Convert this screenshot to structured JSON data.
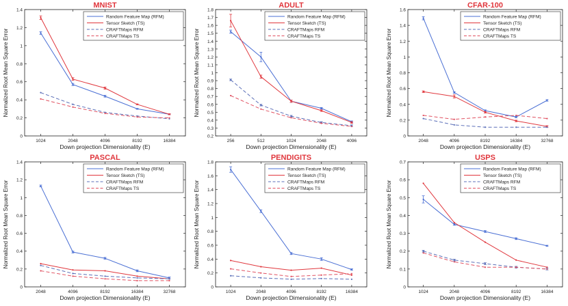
{
  "figure": {
    "background": "#ffffff"
  },
  "colors": {
    "rfm": "#4a6fd4",
    "ts": "#e0363c",
    "craft_rfm": "#5b6fb8",
    "craft_ts": "#e05060",
    "title": "#e0363c",
    "axis": "#222222"
  },
  "legend_labels": [
    "Random Feature Map (RFM)",
    "Tensor Sketch (TS)",
    "CRAFTMaps RFM",
    "CRAFTMaps TS"
  ],
  "chart_data": [
    {
      "type": "line",
      "title": "MNIST",
      "xlabel": "Down projection Dimensionality (E)",
      "ylabel": "Normalized Root Mean Square Error",
      "categories": [
        "1024",
        "2048",
        "4096",
        "8192",
        "16384"
      ],
      "ylim": [
        0,
        1.4
      ],
      "yticks": [
        "0",
        "0.2",
        "0.4",
        "0.6",
        "0.8",
        "1",
        "1.2",
        "1.4"
      ],
      "ytick_values": [
        0,
        0.2,
        0.4,
        0.6,
        0.8,
        1.0,
        1.2,
        1.4
      ],
      "series": [
        {
          "name": "Random Feature Map (RFM)",
          "values": [
            1.14,
            0.57,
            0.44,
            0.3,
            0.24
          ],
          "errors": [
            0.015,
            0.012,
            0.01,
            0.005,
            0.005
          ]
        },
        {
          "name": "Tensor Sketch (TS)",
          "values": [
            1.31,
            0.63,
            0.53,
            0.35,
            0.24
          ],
          "errors": [
            0.02,
            0.015,
            0.012,
            0.005,
            0.005
          ]
        },
        {
          "name": "CRAFTMaps RFM",
          "values": [
            0.48,
            0.35,
            0.26,
            0.22,
            0.19
          ]
        },
        {
          "name": "CRAFTMaps TS",
          "values": [
            0.41,
            0.32,
            0.25,
            0.21,
            0.2
          ]
        }
      ]
    },
    {
      "type": "line",
      "title": "ADULT",
      "xlabel": "Down projection Dimensionality (E)",
      "ylabel": "Normalized Root Mean Square Error",
      "categories": [
        "256",
        "512",
        "1024",
        "2048",
        "4096"
      ],
      "ylim": [
        0.2,
        1.8
      ],
      "yticks": [
        "0.2",
        "0.3",
        "0.4",
        "0.5",
        "0.6",
        "0.7",
        "0.8",
        "0.9",
        "1",
        "1.1",
        "1.2",
        "1.3",
        "1.4",
        "1.5",
        "1.6",
        "1.7",
        "1.8"
      ],
      "ytick_values": [
        0.2,
        0.3,
        0.4,
        0.5,
        0.6,
        0.7,
        0.8,
        0.9,
        1.0,
        1.1,
        1.2,
        1.3,
        1.4,
        1.5,
        1.6,
        1.7,
        1.8
      ],
      "series": [
        {
          "name": "Random Feature Map (RFM)",
          "values": [
            1.52,
            1.2,
            0.64,
            0.55,
            0.38
          ],
          "errors": [
            0.02,
            0.06,
            0.015,
            0.01,
            0.01
          ]
        },
        {
          "name": "Tensor Sketch (TS)",
          "values": [
            1.66,
            0.95,
            0.64,
            0.52,
            0.37
          ],
          "errors": [
            0.08,
            0.02,
            0.015,
            0.01,
            0.01
          ]
        },
        {
          "name": "CRAFTMaps RFM",
          "values": [
            0.91,
            0.59,
            0.45,
            0.37,
            0.33
          ],
          "errors": [
            0.01,
            0.01,
            0.01,
            0.01,
            0.01
          ]
        },
        {
          "name": "CRAFTMaps TS",
          "values": [
            0.71,
            0.54,
            0.43,
            0.36,
            0.32
          ]
        }
      ]
    },
    {
      "type": "line",
      "title": "CFAR-100",
      "xlabel": "Down projection Dimensionality (E)",
      "ylabel": "Normalized Root Mean Square Error",
      "categories": [
        "2048",
        "4096",
        "8192",
        "16384",
        "32768"
      ],
      "ylim": [
        0,
        1.6
      ],
      "yticks": [
        "0",
        "0.2",
        "0.4",
        "0.6",
        "0.8",
        "1",
        "1.2",
        "1.4",
        "1.6"
      ],
      "ytick_values": [
        0,
        0.2,
        0.4,
        0.6,
        0.8,
        1.0,
        1.2,
        1.4,
        1.6
      ],
      "series": [
        {
          "name": "Random Feature Map (RFM)",
          "values": [
            1.49,
            0.55,
            0.32,
            0.24,
            0.45
          ],
          "errors": [
            0.02,
            0.01,
            0.01,
            0.01,
            0.01
          ]
        },
        {
          "name": "Tensor Sketch (TS)",
          "values": [
            0.56,
            0.5,
            0.3,
            0.19,
            0.12
          ],
          "errors": [
            0.01,
            0.02,
            0.01,
            0.01,
            0.01
          ]
        },
        {
          "name": "CRAFTMaps RFM",
          "values": [
            0.22,
            0.14,
            0.11,
            0.11,
            0.11
          ]
        },
        {
          "name": "CRAFTMaps TS",
          "values": [
            0.26,
            0.21,
            0.24,
            0.26,
            0.22
          ]
        }
      ]
    },
    {
      "type": "line",
      "title": "PASCAL",
      "xlabel": "Down projection Dimensionality (E)",
      "ylabel": "Normalized Root Mean Square Error",
      "categories": [
        "2048",
        "4096",
        "8192",
        "16384",
        "32768"
      ],
      "ylim": [
        0,
        1.4
      ],
      "yticks": [
        "0",
        "0.2",
        "0.4",
        "0.6",
        "0.8",
        "1",
        "1.2",
        "1.4"
      ],
      "ytick_values": [
        0,
        0.2,
        0.4,
        0.6,
        0.8,
        1.0,
        1.2,
        1.4
      ],
      "series": [
        {
          "name": "Random Feature Map (RFM)",
          "values": [
            1.13,
            0.39,
            0.32,
            0.18,
            0.1
          ],
          "errors": [
            0.01,
            0.01,
            0.01,
            0.01,
            0.01
          ]
        },
        {
          "name": "Tensor Sketch (TS)",
          "values": [
            0.26,
            0.19,
            0.18,
            0.12,
            0.09
          ]
        },
        {
          "name": "CRAFTMaps RFM",
          "values": [
            0.24,
            0.15,
            0.12,
            0.1,
            0.09
          ]
        },
        {
          "name": "CRAFTMaps TS",
          "values": [
            0.18,
            0.12,
            0.09,
            0.07,
            0.07
          ]
        }
      ]
    },
    {
      "type": "line",
      "title": "PENDIGITS",
      "xlabel": "Down projection Dimensionality (E)",
      "ylabel": "Normalized Root Mean Square Error",
      "categories": [
        "1024",
        "2048",
        "4096",
        "8192",
        "16384"
      ],
      "ylim": [
        0,
        1.8
      ],
      "yticks": [
        "0",
        "0.2",
        "0.4",
        "0.6",
        "0.8",
        "1",
        "1.2",
        "1.4",
        "1.6",
        "1.8"
      ],
      "ytick_values": [
        0,
        0.2,
        0.4,
        0.6,
        0.8,
        1.0,
        1.2,
        1.4,
        1.6,
        1.8
      ],
      "series": [
        {
          "name": "Random Feature Map (RFM)",
          "values": [
            1.69,
            1.09,
            0.48,
            0.4,
            0.25
          ],
          "errors": [
            0.04,
            0.02,
            0.015,
            0.02,
            0.01
          ]
        },
        {
          "name": "Tensor Sketch (TS)",
          "values": [
            0.38,
            0.29,
            0.24,
            0.27,
            0.17
          ]
        },
        {
          "name": "CRAFTMaps RFM",
          "values": [
            0.16,
            0.13,
            0.11,
            0.12,
            0.11
          ]
        },
        {
          "name": "CRAFTMaps TS",
          "values": [
            0.26,
            0.2,
            0.15,
            0.17,
            0.19
          ]
        }
      ]
    },
    {
      "type": "line",
      "title": "USPS",
      "xlabel": "Down projection Dimensionality (E)",
      "ylabel": "Normalized Root Mean Square Error",
      "categories": [
        "1024",
        "2048",
        "4096",
        "8192",
        "16384"
      ],
      "ylim": [
        0,
        0.7
      ],
      "yticks": [
        "0",
        "0.1",
        "0.2",
        "0.3",
        "0.4",
        "0.5",
        "0.6",
        "0.7"
      ],
      "ytick_values": [
        0,
        0.1,
        0.2,
        0.3,
        0.4,
        0.5,
        0.6,
        0.7
      ],
      "series": [
        {
          "name": "Random Feature Map (RFM)",
          "values": [
            0.49,
            0.35,
            0.31,
            0.27,
            0.23
          ],
          "errors": [
            0.02,
            0.005,
            0.005,
            0.005,
            0.003
          ]
        },
        {
          "name": "Tensor Sketch (TS)",
          "values": [
            0.58,
            0.36,
            0.25,
            0.15,
            0.11
          ]
        },
        {
          "name": "CRAFTMaps RFM",
          "values": [
            0.2,
            0.15,
            0.13,
            0.11,
            0.1
          ],
          "errors": [
            0.005,
            0.005,
            0.005,
            0.005,
            0.005
          ]
        },
        {
          "name": "CRAFTMaps TS",
          "values": [
            0.19,
            0.14,
            0.11,
            0.11,
            0.1
          ]
        }
      ]
    }
  ]
}
